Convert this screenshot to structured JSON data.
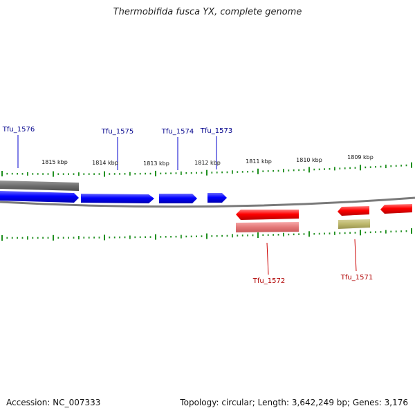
{
  "header": {
    "title": "Thermobifida fusca YX, complete genome"
  },
  "footer": {
    "accession": "Accession: NC_007333",
    "summary": "Topology: circular; Length: 3,642,249 bp; Genes: 3,176"
  },
  "scale_labels": [
    "1815 kbp",
    "1814 kbp",
    "1813 kbp",
    "1812 kbp",
    "1811 kbp",
    "1810 kbp",
    "1809 kbp"
  ],
  "gene_labels": {
    "forward": [
      "Tfu_1576",
      "Tfu_1575",
      "Tfu_1574",
      "Tfu_1573"
    ],
    "reverse": [
      "Tfu_1572",
      "Tfu_1571"
    ]
  },
  "colors": {
    "forward_gene": "#0000ff",
    "reverse_gene": "#ff0000",
    "forward_label": "#00008b",
    "reverse_label": "#b00000",
    "tick": "#1f8f1f",
    "backbone": "#808080"
  }
}
